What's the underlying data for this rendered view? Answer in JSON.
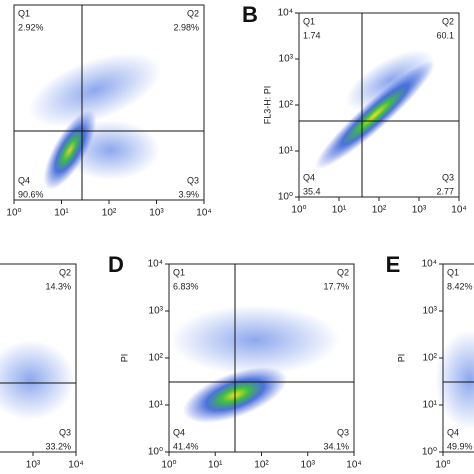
{
  "chart_data": [
    {
      "type": "scatter",
      "xlim": [
        1,
        10000
      ],
      "ylim": [
        1,
        10000
      ],
      "xticks": [
        {
          "value": 1,
          "label": "10⁰"
        },
        {
          "value": 10,
          "label": "10¹"
        },
        {
          "value": 100,
          "label": "10²"
        },
        {
          "value": 1000,
          "label": "10³"
        },
        {
          "value": 10000,
          "label": "10⁴"
        }
      ],
      "quadrants": {
        "names": [
          "Q1",
          "Q2",
          "Q4",
          "Q3"
        ],
        "values": [
          2.92,
          2.98,
          90.6,
          3.9
        ],
        "value_labels": [
          "2.92%",
          "2.98%",
          "90.6%",
          "3.9%"
        ]
      }
    },
    {
      "type": "scatter",
      "panel_label": "B",
      "ylabel": "FL3-H: PI",
      "xlim": [
        1,
        10000
      ],
      "ylim": [
        1,
        10000
      ],
      "xticks": [
        {
          "value": 1,
          "label": "10⁰"
        },
        {
          "value": 10,
          "label": "10¹"
        },
        {
          "value": 100,
          "label": "10²"
        },
        {
          "value": 1000,
          "label": "10³"
        },
        {
          "value": 10000,
          "label": "10⁴"
        }
      ],
      "yticks": [
        {
          "value": 1,
          "label": "10⁰"
        },
        {
          "value": 10,
          "label": "10¹"
        },
        {
          "value": 100,
          "label": "10²"
        },
        {
          "value": 1000,
          "label": "10³"
        },
        {
          "value": 10000,
          "label": "10⁴"
        }
      ],
      "quadrants": {
        "names": [
          "Q1",
          "Q2",
          "Q4",
          "Q3"
        ],
        "values": [
          1.74,
          60.1,
          35.4,
          2.77
        ]
      }
    },
    {
      "type": "scatter",
      "xlim": [
        1,
        10000
      ],
      "ylim": [
        1,
        10000
      ],
      "xticks": [
        {
          "value": 1000,
          "label": "10³"
        },
        {
          "value": 10000,
          "label": "10⁴"
        }
      ],
      "quadrants": {
        "names": [
          "Q2",
          "Q3"
        ],
        "values": [
          14.3,
          33.2
        ],
        "value_labels": [
          "14.3%",
          "33.2%"
        ]
      }
    },
    {
      "type": "scatter",
      "panel_label": "D",
      "ylabel": "PI",
      "xlim": [
        1,
        10000
      ],
      "ylim": [
        1,
        10000
      ],
      "xticks": [
        {
          "value": 1,
          "label": "10⁰"
        },
        {
          "value": 10,
          "label": "10¹"
        },
        {
          "value": 100,
          "label": "10²"
        },
        {
          "value": 1000,
          "label": "10³"
        },
        {
          "value": 10000,
          "label": "10⁴"
        }
      ],
      "yticks": [
        {
          "value": 1,
          "label": "10⁰"
        },
        {
          "value": 10,
          "label": "10¹"
        },
        {
          "value": 100,
          "label": "10²"
        },
        {
          "value": 1000,
          "label": "10³"
        },
        {
          "value": 10000,
          "label": "10⁴"
        }
      ],
      "quadrants": {
        "names": [
          "Q1",
          "Q2",
          "Q4",
          "Q3"
        ],
        "values": [
          6.83,
          17.7,
          41.4,
          34.1
        ],
        "value_labels": [
          "6.83%",
          "17.7%",
          "41.4%",
          "34.1%"
        ]
      }
    },
    {
      "type": "scatter",
      "panel_label": "E",
      "ylabel": "PI",
      "xlim": [
        1,
        10000
      ],
      "ylim": [
        1,
        10000
      ],
      "xticks": [
        {
          "value": 1,
          "label": "10⁰"
        }
      ],
      "yticks": [
        {
          "value": 1,
          "label": "10⁰"
        },
        {
          "value": 10,
          "label": "10¹"
        },
        {
          "value": 100,
          "label": "10²"
        },
        {
          "value": 1000,
          "label": "10³"
        },
        {
          "value": 10000,
          "label": "10⁴"
        }
      ],
      "quadrants": {
        "names": [
          "Q1",
          "Q4"
        ],
        "values": [
          8.42,
          49.9
        ],
        "value_labels": [
          "8.42%",
          "49.9%"
        ]
      }
    }
  ]
}
